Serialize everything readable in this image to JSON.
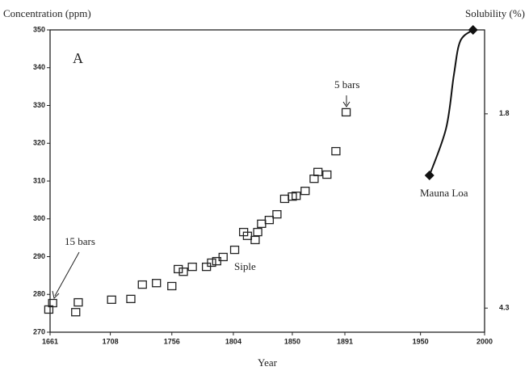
{
  "chart_data": {
    "type": "scatter",
    "ylabel": "Concentration (ppm)",
    "y2label": "Solubility (%)",
    "xlabel": "Year",
    "xlim": [
      1661,
      2000
    ],
    "xticks": [
      1661,
      1708,
      1756,
      1804,
      1850,
      1891,
      1950,
      2000
    ],
    "ylim": [
      270,
      350
    ],
    "yticks": [
      270,
      280,
      290,
      300,
      310,
      320,
      330,
      340,
      350
    ],
    "y2lim": [
      4.61,
      0.72
    ],
    "y2ticks": [
      1.8,
      4.3
    ],
    "series": [
      {
        "marker": "square",
        "color": "#222222",
        "x": [
          1660,
          1663,
          1681,
          1683,
          1709,
          1724,
          1733,
          1744,
          1756,
          1761,
          1765,
          1772,
          1783,
          1787,
          1791,
          1796,
          1805,
          1812,
          1815,
          1821,
          1823,
          1826,
          1832,
          1838,
          1844,
          1850,
          1853,
          1860,
          1867,
          1870,
          1877,
          1884,
          1892
        ],
        "values": [
          276,
          277.7,
          275.3,
          277.9,
          278.6,
          278.8,
          282.6,
          283,
          282.2,
          286.7,
          286,
          287.3,
          287.3,
          288.4,
          288.8,
          289.9,
          291.8,
          296.5,
          295.5,
          294.4,
          296.5,
          298.7,
          299.7,
          301.2,
          305.3,
          305.9,
          306.1,
          307.4,
          310.6,
          312.4,
          311.7,
          317.9,
          328.2
        ]
      },
      {
        "marker": "diamond",
        "line": true,
        "color": "#111111",
        "x": [
          1957,
          1970,
          1976,
          1981,
          1991
        ],
        "values": [
          311.5,
          324,
          338,
          347,
          350
        ]
      }
    ],
    "annotations": [
      "A",
      "5 bars",
      "15 bars",
      "Siple",
      "Mauna Loa"
    ]
  }
}
